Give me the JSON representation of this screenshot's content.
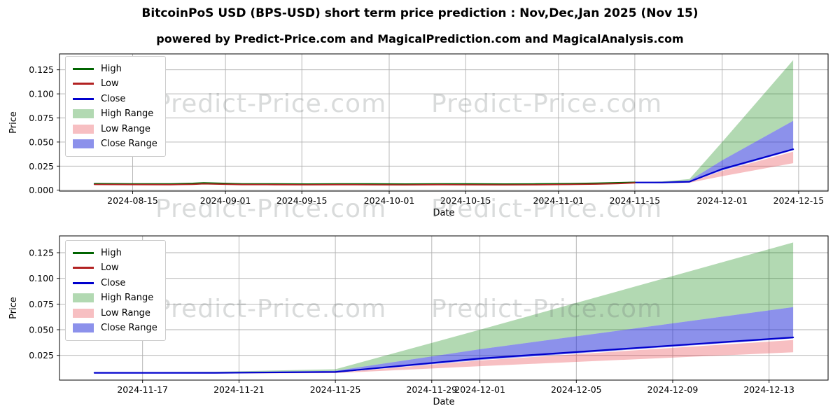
{
  "header": {
    "title": "BitcoinPoS USD (BPS-USD) short term price prediction : Nov,Dec,Jan 2025 (Nov 15)",
    "subtitle": "powered by Predict-Price.com and MagicalPrediction.com and MagicalAnalysis.com"
  },
  "watermark": {
    "text": "Predict-Price.com"
  },
  "legend": {
    "position": "upper left",
    "items": [
      {
        "label": "High",
        "swatch": "line",
        "color": "#006400"
      },
      {
        "label": "Low",
        "swatch": "line",
        "color": "#b22222"
      },
      {
        "label": "Close",
        "swatch": "line",
        "color": "#0000cd"
      },
      {
        "label": "High Range",
        "swatch": "patch",
        "color": "rgba(0,128,0,0.3)"
      },
      {
        "label": "Low Range",
        "swatch": "patch",
        "color": "rgba(230,55,65,0.32)"
      },
      {
        "label": "Close Range",
        "swatch": "patch",
        "color": "rgba(25,35,215,0.5)"
      }
    ]
  },
  "chart_data": [
    {
      "type": "line",
      "panel": "overview",
      "title": "BitcoinPoS USD (BPS-USD) short term price prediction : Nov,Dec,Jan 2025 (Nov 15)",
      "xlabel": "Date",
      "ylabel": "Price",
      "grid": true,
      "x_ticks": [
        {
          "date": "2024-08-15",
          "label": "2024-08-15"
        },
        {
          "date": "2024-09-01",
          "label": "2024-09-01"
        },
        {
          "date": "2024-09-15",
          "label": "2024-09-15"
        },
        {
          "date": "2024-10-01",
          "label": "2024-10-01"
        },
        {
          "date": "2024-10-15",
          "label": "2024-10-15"
        },
        {
          "date": "2024-11-01",
          "label": "2024-11-01"
        },
        {
          "date": "2024-11-15",
          "label": "2024-11-15"
        },
        {
          "date": "2024-12-01",
          "label": "2024-12-01"
        },
        {
          "date": "2024-12-15",
          "label": "2024-12-15"
        }
      ],
      "y_ticks": [
        {
          "value": 0.0,
          "label": "0.000"
        },
        {
          "value": 0.025,
          "label": "0.025"
        },
        {
          "value": 0.05,
          "label": "0.050"
        },
        {
          "value": 0.075,
          "label": "0.075"
        },
        {
          "value": 0.1,
          "label": "0.100"
        },
        {
          "value": 0.125,
          "label": "0.125"
        }
      ],
      "bands": [
        {
          "name": "High Range",
          "color": "rgba(0,128,0,0.3)",
          "x": [
            "2024-11-15",
            "2024-11-20",
            "2024-11-25",
            "2024-12-01",
            "2024-12-14"
          ],
          "upper": [
            0.0084,
            0.009,
            0.0115,
            0.05,
            0.135
          ],
          "lower": [
            0.0082,
            0.0085,
            0.01,
            0.031,
            0.072
          ]
        },
        {
          "name": "Low Range",
          "color": "rgba(230,55,65,0.32)",
          "x": [
            "2024-11-15",
            "2024-11-20",
            "2024-11-25",
            "2024-12-01",
            "2024-12-14"
          ],
          "upper": [
            0.0078,
            0.0076,
            0.0081,
            0.02,
            0.04
          ],
          "lower": [
            0.0075,
            0.0073,
            0.0077,
            0.0145,
            0.028
          ]
        },
        {
          "name": "Close Range",
          "color": "rgba(25,35,215,0.5)",
          "x": [
            "2024-11-15",
            "2024-11-20",
            "2024-11-25",
            "2024-12-01",
            "2024-12-14"
          ],
          "upper": [
            0.0082,
            0.0085,
            0.01,
            0.031,
            0.072
          ],
          "lower": [
            0.0078,
            0.0076,
            0.0082,
            0.0205,
            0.0415
          ]
        }
      ],
      "series": [
        {
          "name": "Close",
          "color": "#0000cd",
          "width": 2.2,
          "x": [
            "2024-08-08",
            "2024-08-15",
            "2024-08-22",
            "2024-08-26",
            "2024-08-28",
            "2024-08-31",
            "2024-09-04",
            "2024-09-10",
            "2024-09-16",
            "2024-09-22",
            "2024-09-28",
            "2024-10-04",
            "2024-10-10",
            "2024-10-16",
            "2024-10-22",
            "2024-10-28",
            "2024-11-03",
            "2024-11-08",
            "2024-11-12",
            "2024-11-15",
            "2024-11-20",
            "2024-11-25",
            "2024-12-01",
            "2024-12-14"
          ],
          "y": [
            0.0064,
            0.0062,
            0.0061,
            0.0066,
            0.0071,
            0.0067,
            0.0062,
            0.0061,
            0.006,
            0.0061,
            0.006,
            0.0059,
            0.0061,
            0.006,
            0.0059,
            0.006,
            0.0063,
            0.0068,
            0.0074,
            0.008,
            0.008,
            0.0088,
            0.022,
            0.0425
          ]
        },
        {
          "name": "High",
          "color": "#006400",
          "width": 1.8,
          "x": [
            "2024-08-08",
            "2024-08-15",
            "2024-08-22",
            "2024-08-26",
            "2024-08-28",
            "2024-08-31",
            "2024-09-04",
            "2024-09-10",
            "2024-09-16",
            "2024-09-22",
            "2024-09-28",
            "2024-10-04",
            "2024-10-10",
            "2024-10-16",
            "2024-10-22",
            "2024-10-28",
            "2024-11-03",
            "2024-11-08",
            "2024-11-12",
            "2024-11-15"
          ],
          "y": [
            0.0068,
            0.0066,
            0.0066,
            0.0071,
            0.0077,
            0.0072,
            0.0066,
            0.0065,
            0.0064,
            0.0066,
            0.0065,
            0.0064,
            0.0066,
            0.0065,
            0.0064,
            0.0065,
            0.0068,
            0.0073,
            0.0078,
            0.0082
          ]
        },
        {
          "name": "Low",
          "color": "#b22222",
          "width": 1.8,
          "x": [
            "2024-08-08",
            "2024-08-15",
            "2024-08-22",
            "2024-08-26",
            "2024-08-28",
            "2024-08-31",
            "2024-09-04",
            "2024-09-10",
            "2024-09-16",
            "2024-09-22",
            "2024-09-28",
            "2024-10-04",
            "2024-10-10",
            "2024-10-16",
            "2024-10-22",
            "2024-10-28",
            "2024-11-03",
            "2024-11-08",
            "2024-11-12",
            "2024-11-15"
          ],
          "y": [
            0.0059,
            0.0058,
            0.0057,
            0.0061,
            0.0066,
            0.0062,
            0.0058,
            0.0057,
            0.0056,
            0.0057,
            0.0056,
            0.0055,
            0.0057,
            0.0056,
            0.0055,
            0.0056,
            0.0059,
            0.0063,
            0.0069,
            0.0076
          ]
        }
      ]
    },
    {
      "type": "line",
      "panel": "prediction-zoom",
      "title": "",
      "xlabel": "Date",
      "ylabel": "Price",
      "grid": true,
      "x_ticks": [
        {
          "date": "2024-11-17",
          "label": "2024-11-17"
        },
        {
          "date": "2024-11-21",
          "label": "2024-11-21"
        },
        {
          "date": "2024-11-25",
          "label": "2024-11-25"
        },
        {
          "date": "2024-11-29",
          "label": "2024-11-29"
        },
        {
          "date": "2024-12-01",
          "label": "2024-12-01"
        },
        {
          "date": "2024-12-05",
          "label": "2024-12-05"
        },
        {
          "date": "2024-12-09",
          "label": "2024-12-09"
        },
        {
          "date": "2024-12-13",
          "label": "2024-12-13"
        }
      ],
      "y_ticks": [
        {
          "value": 0.025,
          "label": "0.025"
        },
        {
          "value": 0.05,
          "label": "0.050"
        },
        {
          "value": 0.075,
          "label": "0.075"
        },
        {
          "value": 0.1,
          "label": "0.100"
        },
        {
          "value": 0.125,
          "label": "0.125"
        }
      ],
      "bands": [
        {
          "name": "High Range",
          "color": "rgba(0,128,0,0.3)",
          "x": [
            "2024-11-15",
            "2024-11-20",
            "2024-11-25",
            "2024-12-01",
            "2024-12-14"
          ],
          "upper": [
            0.0084,
            0.009,
            0.0115,
            0.05,
            0.135
          ],
          "lower": [
            0.0082,
            0.0085,
            0.01,
            0.031,
            0.072
          ]
        },
        {
          "name": "Low Range",
          "color": "rgba(230,55,65,0.32)",
          "x": [
            "2024-11-15",
            "2024-11-20",
            "2024-11-25",
            "2024-12-01",
            "2024-12-14"
          ],
          "upper": [
            0.0078,
            0.0076,
            0.0081,
            0.02,
            0.04
          ],
          "lower": [
            0.0075,
            0.0073,
            0.0077,
            0.0145,
            0.028
          ]
        },
        {
          "name": "Close Range",
          "color": "rgba(25,35,215,0.5)",
          "x": [
            "2024-11-15",
            "2024-11-20",
            "2024-11-25",
            "2024-12-01",
            "2024-12-14"
          ],
          "upper": [
            0.0082,
            0.0085,
            0.01,
            0.031,
            0.072
          ],
          "lower": [
            0.0078,
            0.0076,
            0.0082,
            0.0205,
            0.0415
          ]
        }
      ],
      "series": [
        {
          "name": "Close",
          "color": "#0000cd",
          "width": 2.2,
          "x": [
            "2024-11-15",
            "2024-11-20",
            "2024-11-25",
            "2024-12-01",
            "2024-12-14"
          ],
          "y": [
            0.008,
            0.008,
            0.0088,
            0.022,
            0.0425
          ]
        },
        {
          "name": "High",
          "color": "#006400",
          "width": 1.8,
          "x": [],
          "y": []
        },
        {
          "name": "Low",
          "color": "#b22222",
          "width": 1.8,
          "x": [],
          "y": []
        }
      ]
    }
  ]
}
